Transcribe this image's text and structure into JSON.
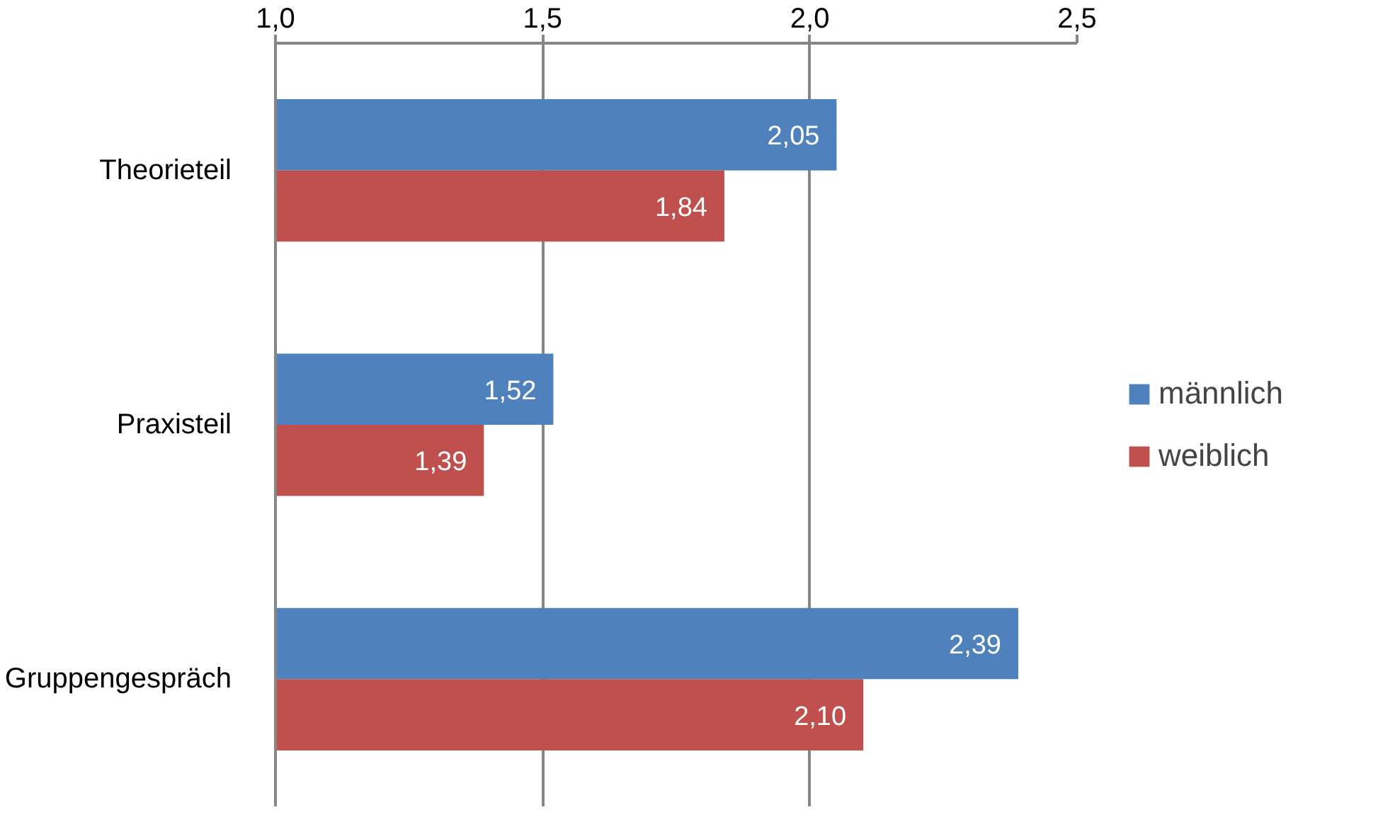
{
  "chart_data": {
    "type": "bar",
    "orientation": "horizontal",
    "categories": [
      "Theorieteil",
      "Praxisteil",
      "Gruppengespräch"
    ],
    "series": [
      {
        "name": "männlich",
        "color": "#4f81bd",
        "values": [
          2.05,
          1.52,
          2.39
        ],
        "value_labels": [
          "2,05",
          "1,52",
          "2,39"
        ]
      },
      {
        "name": "weiblich",
        "color": "#c0504d",
        "values": [
          1.84,
          1.39,
          2.1
        ],
        "value_labels": [
          "1,84",
          "1,39",
          "2,10"
        ]
      }
    ],
    "xlim": [
      1.0,
      2.5
    ],
    "xticks": [
      {
        "value": 1.0,
        "label": "1,0"
      },
      {
        "value": 1.5,
        "label": "1,5"
      },
      {
        "value": 2.0,
        "label": "2,0"
      },
      {
        "value": 2.5,
        "label": "2,5"
      }
    ],
    "grid": "x",
    "legend": "right"
  }
}
